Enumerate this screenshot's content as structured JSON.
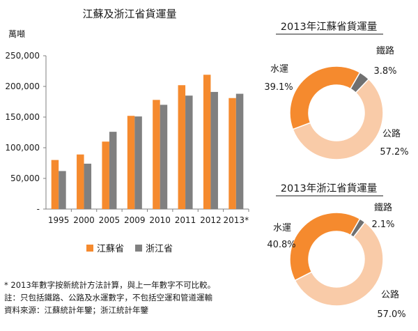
{
  "chart_data": [
    {
      "type": "bar",
      "title": "江蘇及浙江省貨運量",
      "ylabel": "萬噸",
      "categories": [
        "1995",
        "2000",
        "2005",
        "2009",
        "2010",
        "2011",
        "2012",
        "2013*"
      ],
      "yticks": [
        "-",
        "50,000",
        "100,000",
        "150,000",
        "200,000",
        "250,000"
      ],
      "ylim": [
        0,
        250000
      ],
      "grid": false,
      "legend": "bottom",
      "series": [
        {
          "name": "江蘇省",
          "color": "#F58A2E",
          "values": [
            80000,
            89000,
            110000,
            152000,
            178000,
            202000,
            219000,
            181000
          ]
        },
        {
          "name": "浙江省",
          "color": "#808080",
          "values": [
            62000,
            74000,
            126000,
            151000,
            170000,
            185000,
            191000,
            188000
          ]
        }
      ]
    },
    {
      "type": "pie",
      "title": "2013年江蘇省貨運量",
      "slices": [
        {
          "label": "鐵路",
          "value": 3.8,
          "display": "3.8%",
          "color": "#707070"
        },
        {
          "label": "公路",
          "value": 57.2,
          "display": "57.2%",
          "color": "#F9CBA8"
        },
        {
          "label": "水運",
          "value": 39.1,
          "display": "39.1%",
          "color": "#F58A2E"
        }
      ]
    },
    {
      "type": "pie",
      "title": "2013年浙江省貨運量",
      "slices": [
        {
          "label": "鐵路",
          "value": 2.1,
          "display": "2.1%",
          "color": "#707070"
        },
        {
          "label": "公路",
          "value": 57.0,
          "display": "57.0%",
          "color": "#F9CBA8"
        },
        {
          "label": "水運",
          "value": 40.8,
          "display": "40.8%",
          "color": "#F58A2E"
        }
      ]
    }
  ],
  "notes": [
    "* 2013年數字按新統計方法計算，與上一年數字不可比較。",
    "註：只包括鐵路、公路及水運數字，不包括空運和管道運輸",
    "資料來源：江蘇統計年鑒；浙江統計年鑒"
  ]
}
